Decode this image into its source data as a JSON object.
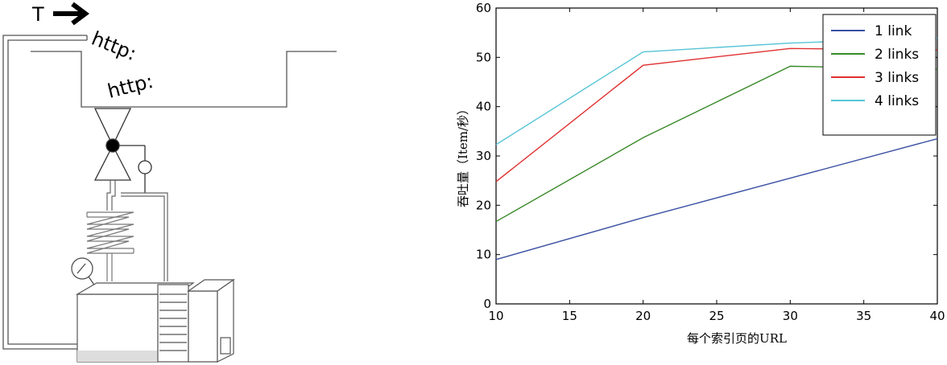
{
  "diagram": {
    "t_label": "T",
    "http_label_1": "http:",
    "http_label_2": "http:"
  },
  "chart_data": {
    "type": "line",
    "title": "",
    "xlabel": "每个索引页的URL",
    "ylabel": "吞吐量（Item/秒）",
    "xlim": [
      10,
      40
    ],
    "ylim": [
      0,
      60
    ],
    "xticks": [
      10,
      15,
      20,
      25,
      30,
      35,
      40
    ],
    "yticks": [
      0,
      10,
      20,
      30,
      40,
      50,
      60
    ],
    "grid": false,
    "legend": "top-right",
    "x": [
      10,
      20,
      30,
      40
    ],
    "series": [
      {
        "name": "1 link",
        "color": "#3a4fa3",
        "values": [
          9,
          17.5,
          25.5,
          33.5
        ]
      },
      {
        "name": "2 links",
        "color": "#3a8a2a",
        "values": [
          16.7,
          33.7,
          48.2,
          47.6
        ]
      },
      {
        "name": "3 links",
        "color": "#e03030",
        "values": [
          24.8,
          48.4,
          51.8,
          51.5
        ]
      },
      {
        "name": "4 links",
        "color": "#56c4d6",
        "values": [
          32.3,
          51.1,
          52.9,
          53.9
        ]
      }
    ]
  }
}
